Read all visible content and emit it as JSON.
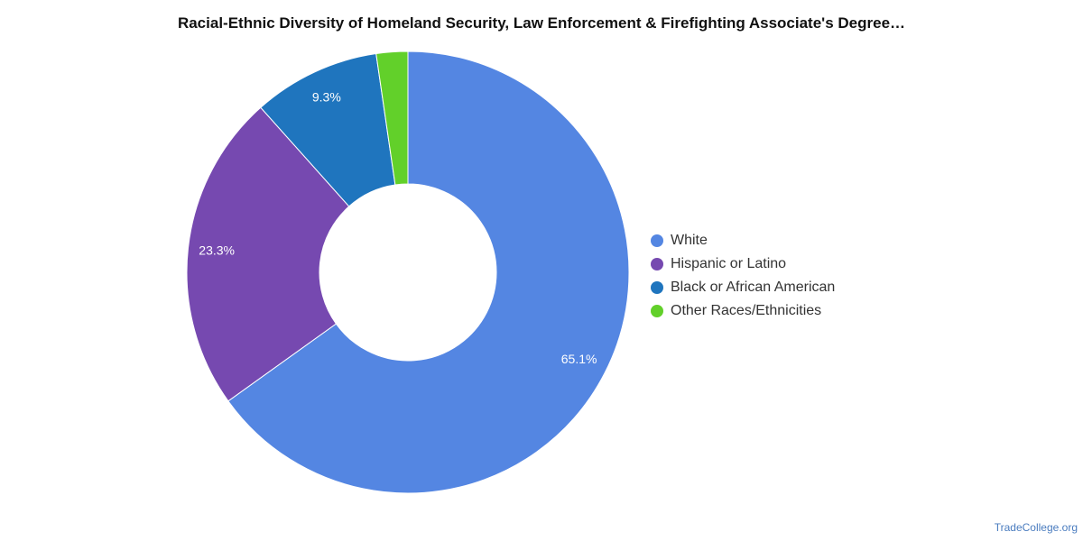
{
  "chart_data": {
    "type": "pie",
    "title": "Racial-Ethnic Diversity of Homeland Security, Law Enforcement & Firefighting Associate's Degree…",
    "categories": [
      "White",
      "Hispanic or Latino",
      "Black or African American",
      "Other Races/Ethnicities"
    ],
    "values": [
      65.1,
      23.3,
      9.3,
      2.3
    ],
    "data_labels": [
      "65.1%",
      "23.3%",
      "9.3%",
      ""
    ],
    "colors": [
      "#5486e2",
      "#7649b0",
      "#1f75be",
      "#62d02a"
    ],
    "legend_position": "right",
    "donut": true
  },
  "credit": "TradeCollege.org"
}
